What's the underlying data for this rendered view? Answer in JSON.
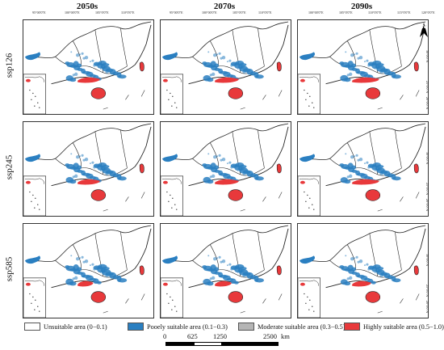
{
  "columns": [
    "2050s",
    "2070s",
    "2090s"
  ],
  "rows": [
    "ssp126",
    "ssp245",
    "ssp585"
  ],
  "lon_labels": [
    "95°00′0″E",
    "100°00′0″E",
    "105°0′0″E",
    "110°0′0″E",
    "115°0′0″E",
    "120°0′0″E"
  ],
  "lat_labels": [
    "30°0′0″N",
    "25°0′0″N",
    "20°0′0″N"
  ],
  "north_label": "N",
  "legend": [
    {
      "label": "Unsuitable area (0−0.1)",
      "color": "#ffffff"
    },
    {
      "label": "Pooely suitable area (0.1−0.3)",
      "color": "#2a7fc1"
    },
    {
      "label": "Moderate suitable area (0.3−0.5)",
      "color": "#b5b5b5"
    },
    {
      "label": "Highly suitable area (0.5−1.0)",
      "color": "#e8393b"
    }
  ],
  "scale": {
    "ticks": [
      "0",
      "625",
      "1250",
      "2500"
    ],
    "unit": "km"
  }
}
